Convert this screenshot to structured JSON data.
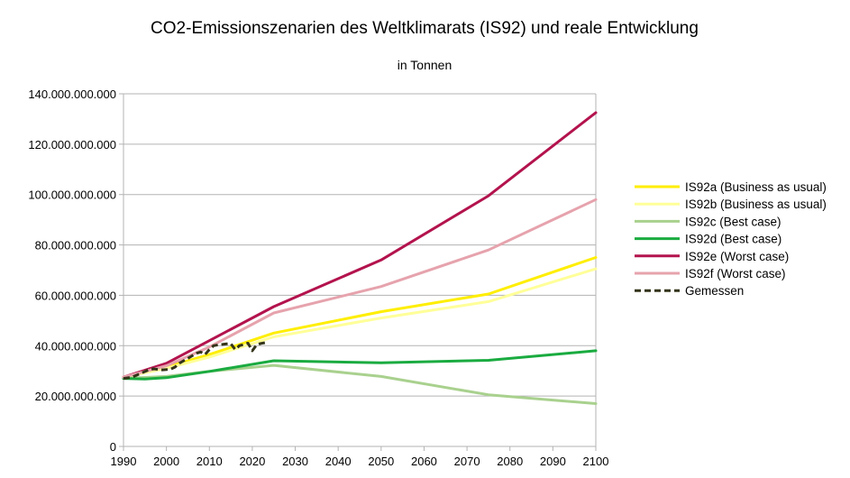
{
  "chart_data": {
    "type": "line",
    "title": "CO2-Emissionszenarien des Weltklimarats (IS92) und reale Entwicklung",
    "subtitle": "in Tonnen",
    "xlabel": "",
    "ylabel": "",
    "xlim": [
      1990,
      2100
    ],
    "ylim": [
      0,
      140000000000
    ],
    "x_ticks": [
      "1990",
      "2000",
      "2010",
      "2020",
      "2030",
      "2040",
      "2050",
      "2060",
      "2070",
      "2080",
      "2090",
      "2100"
    ],
    "y_ticks": [
      "0",
      "20.000.000.000",
      "40.000.000.000",
      "60.000.000.000",
      "80.000.000.000",
      "100.000.000.000",
      "120.000.000.000",
      "140.000.000.000"
    ],
    "grid": "horizontal",
    "legend_position": "right",
    "series": [
      {
        "name": "IS92a (Business as usual)",
        "color": "#ffee00",
        "style": "solid",
        "x": [
          1990,
          2000,
          2010,
          2025,
          2050,
          2075,
          2100
        ],
        "y": [
          27500000000,
          31500000000,
          36500000000,
          45000000000,
          53500000000,
          60500000000,
          75000000000
        ]
      },
      {
        "name": "IS92b (Business as usual)",
        "color": "#ffff99",
        "style": "solid",
        "x": [
          1990,
          2000,
          2010,
          2025,
          2050,
          2075,
          2100
        ],
        "y": [
          27500000000,
          31000000000,
          35500000000,
          43500000000,
          51000000000,
          57500000000,
          70500000000
        ]
      },
      {
        "name": "IS92c (Best case)",
        "color": "#a9d18e",
        "style": "solid",
        "x": [
          1990,
          2000,
          2010,
          2025,
          2050,
          2075,
          2100
        ],
        "y": [
          27000000000,
          27800000000,
          29800000000,
          32200000000,
          27800000000,
          20500000000,
          17000000000
        ]
      },
      {
        "name": "IS92d (Best case)",
        "color": "#1aab40",
        "style": "solid",
        "x": [
          1990,
          1995,
          2000,
          2010,
          2025,
          2050,
          2075,
          2100
        ],
        "y": [
          27000000000,
          26800000000,
          27300000000,
          29800000000,
          34000000000,
          33200000000,
          34200000000,
          38000000000
        ]
      },
      {
        "name": "IS92e (Worst case)",
        "color": "#b3134d",
        "style": "solid",
        "x": [
          1990,
          2000,
          2010,
          2025,
          2050,
          2075,
          2100
        ],
        "y": [
          27500000000,
          33000000000,
          42000000000,
          55500000000,
          74000000000,
          99500000000,
          132500000000
        ]
      },
      {
        "name": "IS92f (Worst case)",
        "color": "#e6a3ad",
        "style": "solid",
        "x": [
          1990,
          2000,
          2010,
          2025,
          2050,
          2075,
          2100
        ],
        "y": [
          27500000000,
          32000000000,
          39500000000,
          53000000000,
          63500000000,
          78000000000,
          98000000000
        ]
      },
      {
        "name": "Gemessen",
        "color": "#333319",
        "style": "dashed",
        "x": [
          1990,
          1992,
          1994,
          1996,
          1997,
          1998,
          1999,
          2000,
          2001,
          2002,
          2003,
          2004,
          2005,
          2006,
          2007,
          2008,
          2009,
          2010,
          2011,
          2012,
          2013,
          2014,
          2015,
          2016,
          2017,
          2018,
          2019,
          2020,
          2021,
          2022,
          2023
        ],
        "y": [
          27000000000,
          27500000000,
          29000000000,
          30500000000,
          30800000000,
          30600000000,
          30400000000,
          30500000000,
          30700000000,
          31500000000,
          33000000000,
          34000000000,
          35000000000,
          36000000000,
          37000000000,
          37500000000,
          36500000000,
          38500000000,
          40000000000,
          40300000000,
          40500000000,
          40700000000,
          40800000000,
          38500000000,
          40000000000,
          40500000000,
          41000000000,
          38000000000,
          40300000000,
          40900000000,
          41200000000
        ]
      }
    ]
  }
}
